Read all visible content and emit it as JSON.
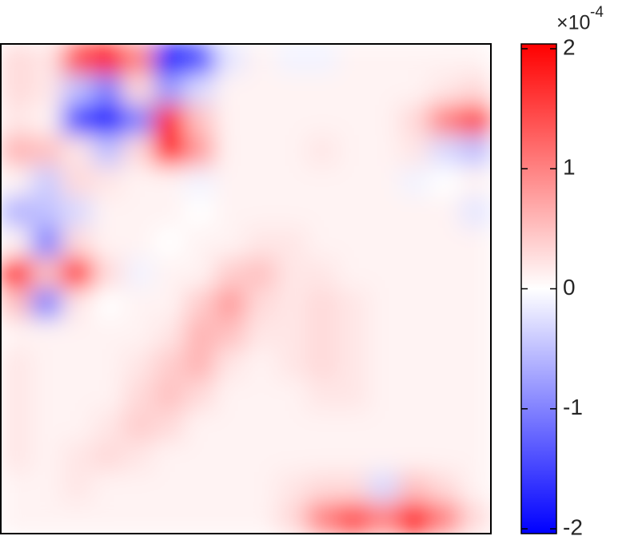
{
  "chart_data": {
    "type": "heatmap",
    "clim": [
      -2.04,
      2.04
    ],
    "colorbar_ticks": [
      -2,
      -1,
      0,
      1,
      2
    ],
    "exponent_label": {
      "base": "×10",
      "power": "-4"
    },
    "colormap": [
      "#0000ff",
      "#ffffff",
      "#ff0000"
    ],
    "z": [
      [
        0.3,
        0.2,
        1.5,
        2,
        1,
        -2,
        -1.5,
        -0.2,
        0.1,
        -0.1,
        -0.1,
        0.1,
        0.1,
        0.1,
        0.1,
        0.1
      ],
      [
        0.3,
        0.2,
        -0.5,
        -1,
        0.3,
        -0.8,
        -0.3,
        0.1,
        0.1,
        0.1,
        0.1,
        0.1,
        0.1,
        0.1,
        0.2,
        0.3
      ],
      [
        0.2,
        0.1,
        -1.5,
        -2,
        -1,
        1.8,
        0.5,
        0.1,
        0.1,
        0.1,
        0.1,
        0.1,
        0.1,
        0.3,
        1,
        1.5
      ],
      [
        0.6,
        0.5,
        0.2,
        -0.5,
        0.3,
        2,
        0.8,
        0.1,
        0.1,
        0.1,
        0.2,
        0.1,
        0.1,
        0.2,
        -0.3,
        -0.5
      ],
      [
        0.1,
        -0.4,
        0.3,
        0.2,
        0.1,
        0.1,
        -0.1,
        0.1,
        0.1,
        0.1,
        0.1,
        0.1,
        0.1,
        -0.1,
        0,
        0.1
      ],
      [
        -0.6,
        -0.5,
        -0.3,
        0.1,
        0.1,
        0.1,
        0,
        0.1,
        0.1,
        0.1,
        0.1,
        0.1,
        0.1,
        0.1,
        0.1,
        -0.2
      ],
      [
        0.1,
        -1,
        0.3,
        0.1,
        0.1,
        0,
        0.1,
        0.1,
        0.2,
        0.2,
        0.1,
        0.1,
        0.1,
        0.1,
        0.1,
        0.1
      ],
      [
        2,
        0.5,
        1.8,
        0.3,
        -0.1,
        0.1,
        0.1,
        0.4,
        0.5,
        0.2,
        0.2,
        0.1,
        0.1,
        0.1,
        0.1,
        0.1
      ],
      [
        0.5,
        -1,
        0.2,
        0,
        0.1,
        0.1,
        0.4,
        0.8,
        0.3,
        0.2,
        0.3,
        0.2,
        0.1,
        0.1,
        0.1,
        0.1
      ],
      [
        0.1,
        0.1,
        0.1,
        0.1,
        0.1,
        0.2,
        0.6,
        0.5,
        0.2,
        0.2,
        0.3,
        0.2,
        0.1,
        0.1,
        0.1,
        0.1
      ],
      [
        0.2,
        0.1,
        0.1,
        0.1,
        0.2,
        0.4,
        0.6,
        0.2,
        0.1,
        0.2,
        0.3,
        0.2,
        0.1,
        0.1,
        0.1,
        0.1
      ],
      [
        0.2,
        0.1,
        0.1,
        0.1,
        0.3,
        0.5,
        0.3,
        0.1,
        0.1,
        0.1,
        0.2,
        0.2,
        0.1,
        0.1,
        0.1,
        0.1
      ],
      [
        0.2,
        0.1,
        0.1,
        0.2,
        0.4,
        0.3,
        0.1,
        0.1,
        0.1,
        0.1,
        0.1,
        0.1,
        0.1,
        0.1,
        0.1,
        0.1
      ],
      [
        0.2,
        0.1,
        0.2,
        0.3,
        0.2,
        0.1,
        0.1,
        0.1,
        0.1,
        0.1,
        0.1,
        0.1,
        0.1,
        0.1,
        0.1,
        0.1
      ],
      [
        0.1,
        0.1,
        0.2,
        0.1,
        0.1,
        0.1,
        0.1,
        0.1,
        0.1,
        0.2,
        0.3,
        0.3,
        -0.3,
        0.5,
        0.3,
        0.1
      ],
      [
        0.1,
        0.1,
        0.1,
        0.1,
        0.1,
        0.1,
        0.1,
        0.1,
        0.1,
        0.3,
        1,
        1.5,
        1,
        2,
        1,
        0.3
      ]
    ]
  }
}
